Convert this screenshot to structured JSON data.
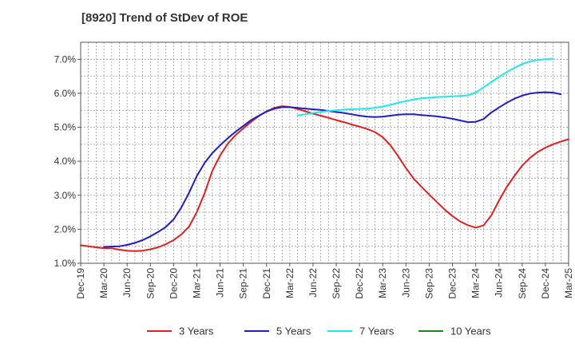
{
  "chart_data": {
    "type": "line",
    "title": "[8920]  Trend of StDev of ROE",
    "xlabel": "",
    "ylabel": "",
    "ylim": [
      1.0,
      7.5
    ],
    "grid": true,
    "legend_position": "bottom",
    "y_ticks": [
      "1.0%",
      "2.0%",
      "3.0%",
      "4.0%",
      "5.0%",
      "6.0%",
      "7.0%"
    ],
    "y_tick_values": [
      1.0,
      2.0,
      3.0,
      4.0,
      5.0,
      6.0,
      7.0
    ],
    "x_ticks": [
      "Dec-19",
      "Mar-20",
      "Jun-20",
      "Sep-20",
      "Dec-20",
      "Mar-21",
      "Jun-21",
      "Sep-21",
      "Dec-21",
      "Mar-22",
      "Jun-22",
      "Sep-22",
      "Dec-22",
      "Mar-23",
      "Jun-23",
      "Sep-23",
      "Dec-23",
      "Mar-24",
      "Jun-24",
      "Sep-24",
      "Dec-24",
      "Mar-25"
    ],
    "series": [
      {
        "name": "3 Years",
        "color": "#e02020",
        "start_index": 0,
        "values": [
          1.53,
          1.5,
          1.47,
          1.44,
          1.44,
          1.4,
          1.37,
          1.36,
          1.37,
          1.41,
          1.47,
          1.56,
          1.68,
          1.85,
          2.08,
          2.51,
          3.06,
          3.72,
          4.17,
          4.52,
          4.77,
          4.97,
          5.16,
          5.33,
          5.47,
          5.57,
          5.62,
          5.6,
          5.54,
          5.47,
          5.4,
          5.34,
          5.28,
          5.21,
          5.15,
          5.08,
          5.02,
          4.95,
          4.86,
          4.71,
          4.47,
          4.15,
          3.8,
          3.49,
          3.25,
          3.02,
          2.8,
          2.58,
          2.39,
          2.23,
          2.12,
          2.05,
          2.11,
          2.4,
          2.84,
          3.24,
          3.57,
          3.87,
          4.1,
          4.27,
          4.4,
          4.5,
          4.58,
          4.65
        ]
      },
      {
        "name": "5 Years",
        "color": "#1f1fc0",
        "start_index": 3,
        "values": [
          1.48,
          1.49,
          1.5,
          1.54,
          1.6,
          1.68,
          1.79,
          1.92,
          2.07,
          2.29,
          2.64,
          3.08,
          3.57,
          3.95,
          4.24,
          4.47,
          4.68,
          4.87,
          5.04,
          5.21,
          5.34,
          5.46,
          5.55,
          5.59,
          5.59,
          5.57,
          5.55,
          5.53,
          5.51,
          5.48,
          5.45,
          5.42,
          5.38,
          5.34,
          5.31,
          5.3,
          5.31,
          5.34,
          5.37,
          5.38,
          5.38,
          5.36,
          5.34,
          5.32,
          5.29,
          5.25,
          5.2,
          5.15,
          5.16,
          5.24,
          5.43,
          5.58,
          5.72,
          5.84,
          5.93,
          5.99,
          6.02,
          6.03,
          6.02,
          5.97
        ]
      },
      {
        "name": "7 Years",
        "color": "#20e8e8",
        "start_index": 28,
        "values": [
          5.35,
          5.38,
          5.42,
          5.45,
          5.48,
          5.5,
          5.52,
          5.53,
          5.54,
          5.55,
          5.57,
          5.61,
          5.66,
          5.72,
          5.77,
          5.82,
          5.85,
          5.87,
          5.89,
          5.9,
          5.91,
          5.92,
          5.94,
          6.02,
          6.17,
          6.33,
          6.48,
          6.62,
          6.75,
          6.86,
          6.94,
          6.98,
          7.0,
          7.02
        ]
      },
      {
        "name": "10 Years",
        "color": "#1a8a1a",
        "start_index": 0,
        "values": []
      }
    ]
  }
}
